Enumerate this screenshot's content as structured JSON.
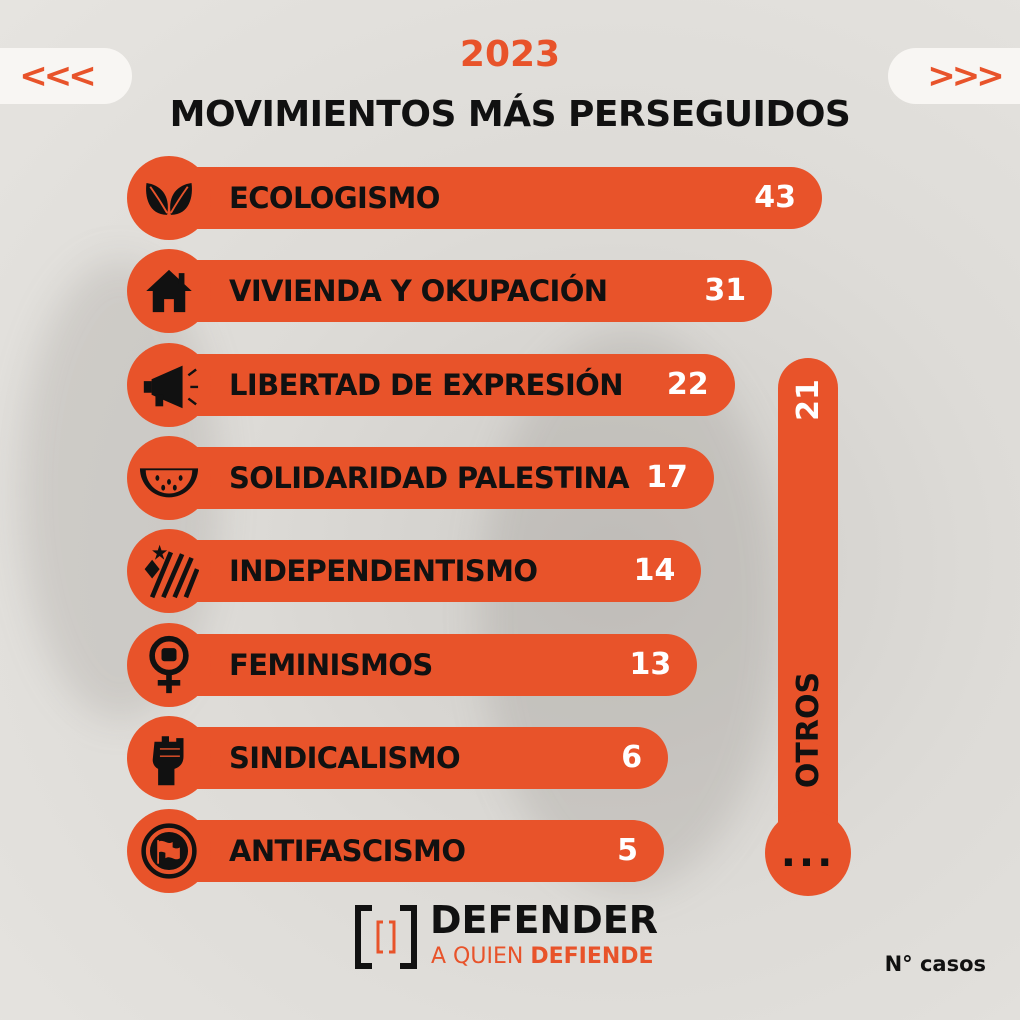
{
  "nav": {
    "prev_label": "<<<",
    "next_label": ">>>"
  },
  "header": {
    "year": "2023",
    "title": "MOVIMIENTOS MÁS PERSEGUIDOS"
  },
  "chart_data": {
    "type": "bar",
    "orientation": "horizontal",
    "categories": [
      "ECOLOGISMO",
      "VIVIENDA Y OKUPACIÓN",
      "LIBERTAD DE EXPRESIÓN",
      "SOLIDARIDAD PALESTINA",
      "INDEPENDENTISMO",
      "FEMINISMOS",
      "SINDICALISMO",
      "ANTIFASCISMO"
    ],
    "values": [
      43,
      31,
      22,
      17,
      14,
      13,
      6,
      5
    ],
    "icons": [
      "leaf-icon",
      "house-icon",
      "megaphone-icon",
      "watermelon-icon",
      "estelada-icon",
      "feminist-fist-icon",
      "raised-fist-icon",
      "antifa-flags-icon"
    ],
    "other": {
      "label": "OTROS",
      "value": 21,
      "ellipsis": "..."
    },
    "bar_color": "#e8532a",
    "unit_label": "N° casos"
  },
  "logo": {
    "name": "DEFENDER",
    "sub_prefix": "A QUIEN ",
    "sub_bold": "DEFIENDE"
  }
}
